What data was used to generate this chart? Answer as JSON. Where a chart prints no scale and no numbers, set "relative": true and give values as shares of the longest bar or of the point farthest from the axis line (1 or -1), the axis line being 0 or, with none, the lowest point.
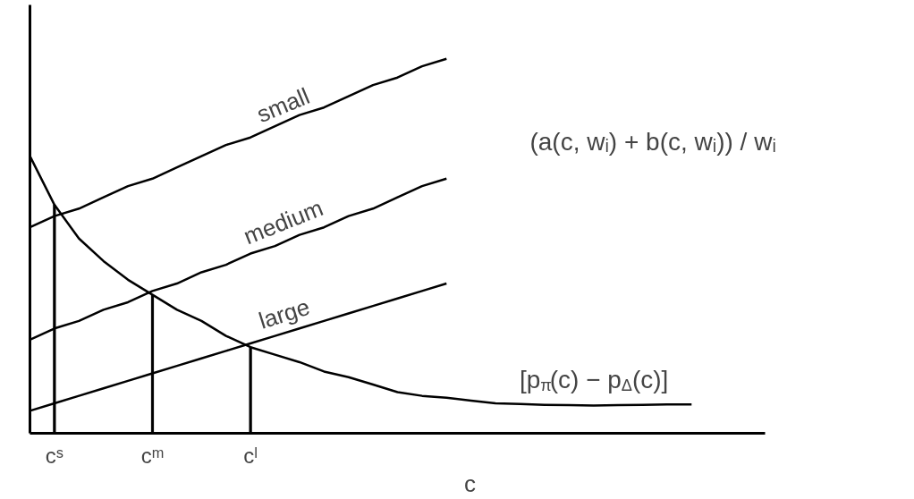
{
  "chart_data": {
    "type": "line",
    "relative": true,
    "xlabel": "c",
    "tick_labels": "x",
    "categories": [
      null,
      "cˢ",
      null,
      null,
      null,
      "cᵐ",
      null,
      null,
      null,
      "cˡ",
      null,
      null,
      null,
      null,
      null,
      null,
      null,
      null,
      null,
      null,
      null,
      null,
      null,
      null,
      null,
      null,
      null,
      null,
      null,
      null,
      null
    ],
    "annotations": [
      "(a(c, wᵢ) + b(c, wᵢ)) / wᵢ"
    ],
    "series": [
      {
        "name": "small",
        "color": "#000000",
        "values": [
          0.55,
          0.58,
          0.6,
          0.63,
          0.66,
          0.68,
          0.71,
          0.74,
          0.77,
          0.79,
          0.82,
          0.85,
          0.87,
          0.9,
          0.93,
          0.95,
          0.98,
          1.0,
          null,
          null,
          null,
          null,
          null,
          null,
          null,
          null,
          null,
          null,
          null,
          null,
          null
        ]
      },
      {
        "name": "medium",
        "color": "#000000",
        "values": [
          0.25,
          0.28,
          0.3,
          0.33,
          0.35,
          0.38,
          0.4,
          0.43,
          0.45,
          0.48,
          0.5,
          0.53,
          0.55,
          0.58,
          0.6,
          0.63,
          0.66,
          0.68,
          null,
          null,
          null,
          null,
          null,
          null,
          null,
          null,
          null,
          null,
          null,
          null,
          null
        ]
      },
      {
        "name": "large",
        "color": "#000000",
        "values": [
          0.06,
          0.08,
          0.1,
          0.12,
          0.14,
          0.16,
          0.18,
          0.2,
          0.22,
          0.24,
          0.26,
          0.28,
          0.3,
          0.32,
          0.34,
          0.36,
          0.38,
          0.4,
          null,
          null,
          null,
          null,
          null,
          null,
          null,
          null,
          null,
          null,
          null,
          null,
          null
        ]
      },
      {
        "name": "[p$_{π}$(c) − p$_{Δ}$(c)]",
        "color": "#000000",
        "values": [
          0.74,
          0.61,
          0.52,
          0.46,
          0.41,
          0.37,
          0.33,
          0.3,
          0.26,
          0.23,
          0.21,
          0.19,
          0.165,
          0.15,
          0.13,
          0.11,
          0.1,
          0.095,
          0.087,
          0.08,
          0.078,
          0.076,
          0.075,
          0.074,
          0.075,
          0.076,
          0.077,
          0.077,
          null,
          null,
          null
        ]
      },
      {
        "type": "bar",
        "color": "#000000",
        "values": [
          null,
          0.61,
          null,
          null,
          null,
          0.37,
          null,
          null,
          null,
          0.23,
          null,
          null,
          null,
          null,
          null,
          null,
          null,
          null,
          null,
          null,
          null,
          null,
          null,
          null,
          null,
          null,
          null,
          null,
          null,
          null,
          null
        ]
      }
    ]
  }
}
